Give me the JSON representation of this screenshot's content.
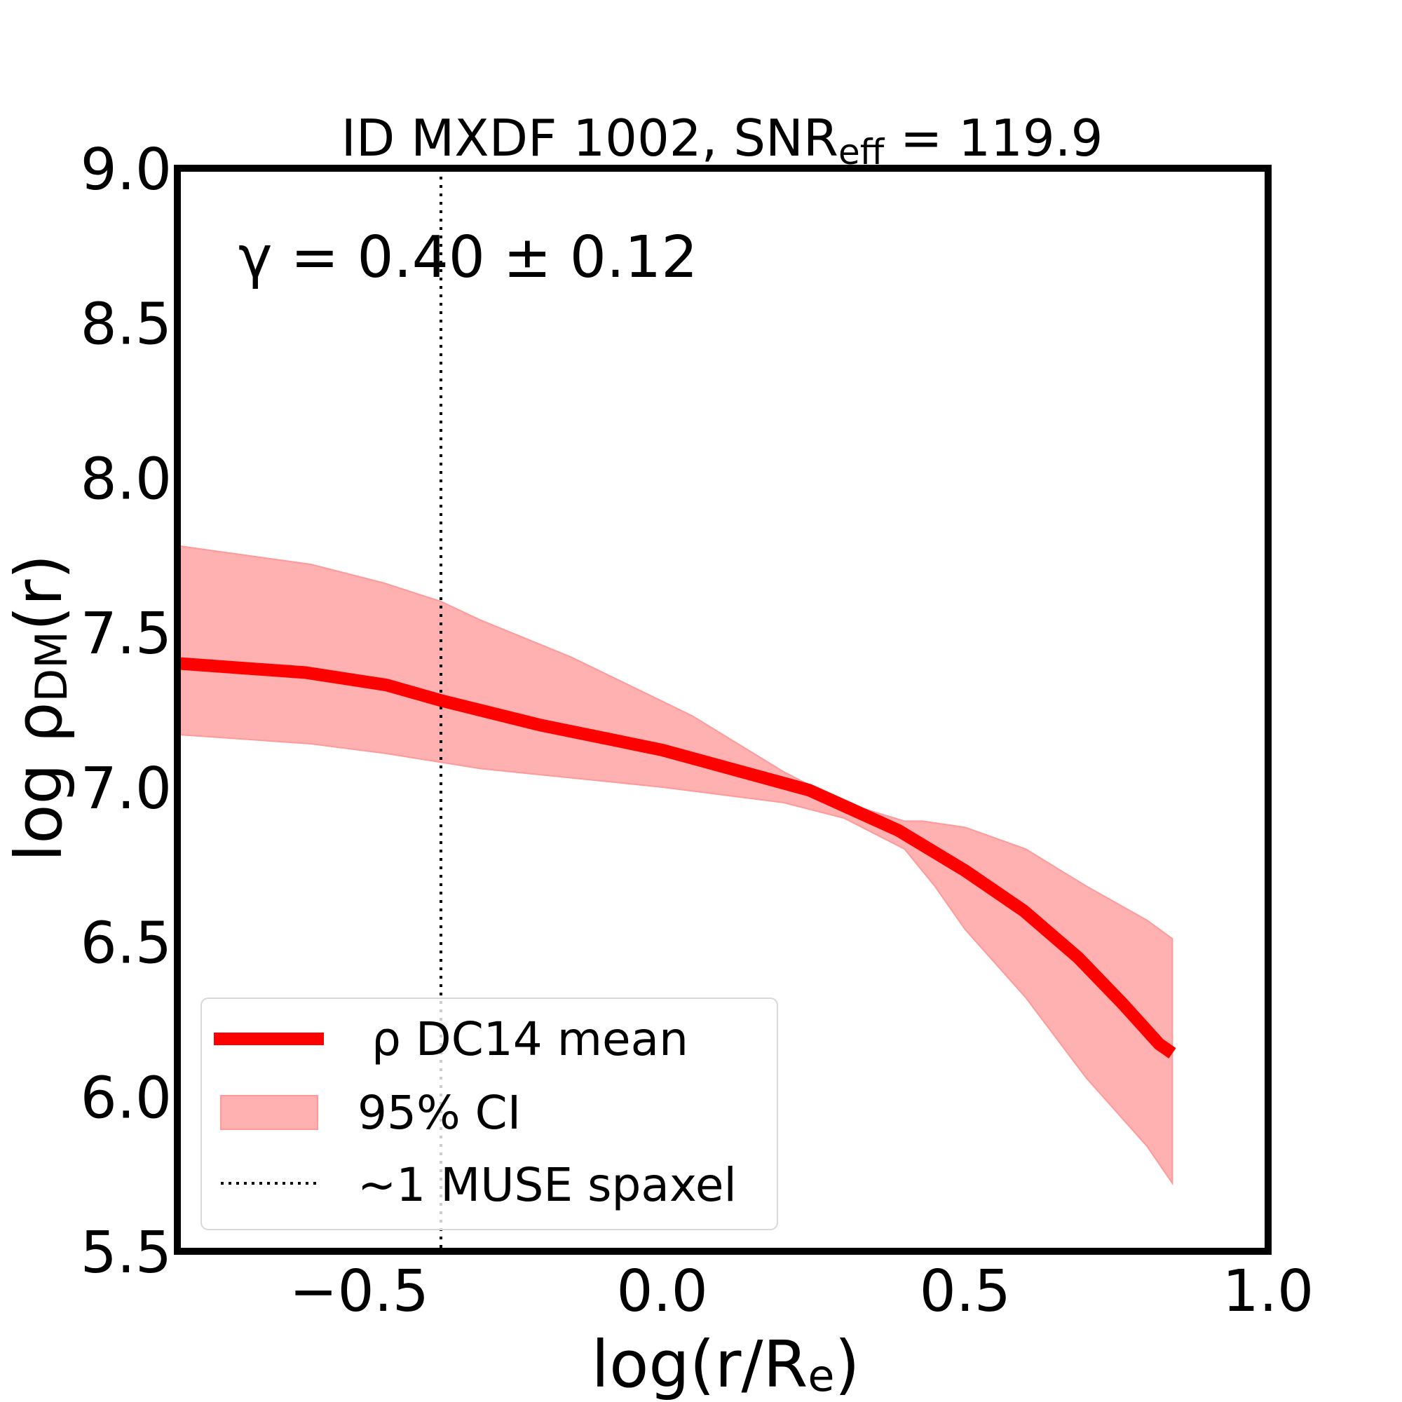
{
  "chart_data": {
    "type": "line",
    "title": "ID MXDF 1002, SNR",
    "title_sub": "eff",
    "title_suffix": " = 119.9",
    "annotation": "γ = 0.40 ± 0.12",
    "xlabel": "log(r/R",
    "xlabel_sub": "e",
    "xlabel_close": ")",
    "ylabel": "log ρ",
    "ylabel_sub": "DM",
    "ylabel_close": "(r)",
    "xlim": [
      -0.8,
      1.0
    ],
    "ylim": [
      5.5,
      9.0
    ],
    "xticks": [
      -0.5,
      0.0,
      0.5,
      1.0
    ],
    "xtick_labels": [
      "−0.5",
      "0.0",
      "0.5",
      "1.0"
    ],
    "yticks": [
      5.5,
      6.0,
      6.5,
      7.0,
      7.5,
      8.0,
      8.5,
      9.0
    ],
    "ytick_labels": [
      "5.5",
      "6.0",
      "6.5",
      "7.0",
      "7.5",
      "8.0",
      "8.5",
      "9.0"
    ],
    "grid": false,
    "legend_placement": "lower-left",
    "colors": {
      "mean": "#ff0000",
      "band": "#ffb0b0",
      "spaxel": "#000000"
    },
    "series": [
      {
        "name": "ρ DC14 mean",
        "x": [
          -0.8,
          -0.588,
          -0.455,
          -0.365,
          -0.2,
          0.0,
          0.243,
          0.39,
          0.5,
          0.597,
          0.686,
          0.76,
          0.82,
          0.842
        ],
        "y": [
          7.4,
          7.37,
          7.33,
          7.28,
          7.2,
          7.12,
          6.99,
          6.86,
          6.73,
          6.6,
          6.45,
          6.3,
          6.17,
          6.14
        ]
      }
    ],
    "band": {
      "name": "95% CI",
      "x": [
        -0.8,
        -0.58,
        -0.46,
        -0.365,
        -0.3,
        -0.15,
        0.05,
        0.2,
        0.3,
        0.4,
        0.43,
        0.5,
        0.6,
        0.7,
        0.8,
        0.842
      ],
      "upper": [
        7.78,
        7.72,
        7.66,
        7.6,
        7.54,
        7.42,
        7.23,
        7.05,
        6.95,
        6.89,
        6.89,
        6.87,
        6.8,
        6.68,
        6.57,
        6.51
      ],
      "x_lower": [
        -0.8,
        -0.58,
        -0.46,
        -0.3,
        0.0,
        0.2,
        0.3,
        0.4,
        0.45,
        0.5,
        0.6,
        0.7,
        0.8,
        0.842
      ],
      "lower": [
        7.17,
        7.14,
        7.11,
        7.06,
        7.0,
        6.95,
        6.9,
        6.8,
        6.68,
        6.54,
        6.32,
        6.06,
        5.84,
        5.72
      ]
    },
    "vline": {
      "name": "~1 MUSE spaxel",
      "x": -0.365
    },
    "legend": {
      "mean_label": "ρ DC14 mean",
      "band_label": "95% CI",
      "vline_label": "~1 MUSE spaxel"
    }
  }
}
